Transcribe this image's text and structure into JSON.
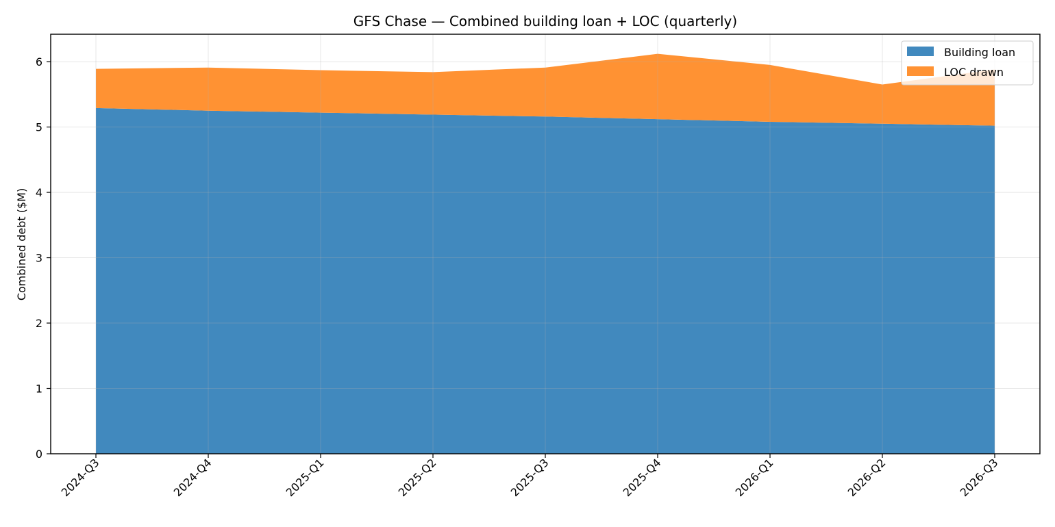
{
  "chart_data": {
    "type": "area",
    "stacked": true,
    "title": "GFS Chase — Combined building loan + LOC (quarterly)",
    "xlabel": "",
    "ylabel": "Combined debt ($M)",
    "categories": [
      "2024-Q3",
      "2024-Q4",
      "2025-Q1",
      "2025-Q2",
      "2025-Q3",
      "2025-Q4",
      "2026-Q1",
      "2026-Q2",
      "2026-Q3"
    ],
    "series": [
      {
        "name": "Building loan",
        "color": "#4189be",
        "values": [
          5.29,
          5.25,
          5.22,
          5.19,
          5.16,
          5.12,
          5.08,
          5.05,
          5.02
        ]
      },
      {
        "name": "LOC drawn",
        "color": "#ff9233",
        "values": [
          0.6,
          0.66,
          0.65,
          0.65,
          0.75,
          1.0,
          0.87,
          0.6,
          0.86
        ]
      }
    ],
    "ylim": [
      0,
      6.42
    ],
    "yticks": [
      "0",
      "1",
      "2",
      "3",
      "4",
      "5",
      "6"
    ],
    "grid": true,
    "legend_position": "top-right"
  }
}
